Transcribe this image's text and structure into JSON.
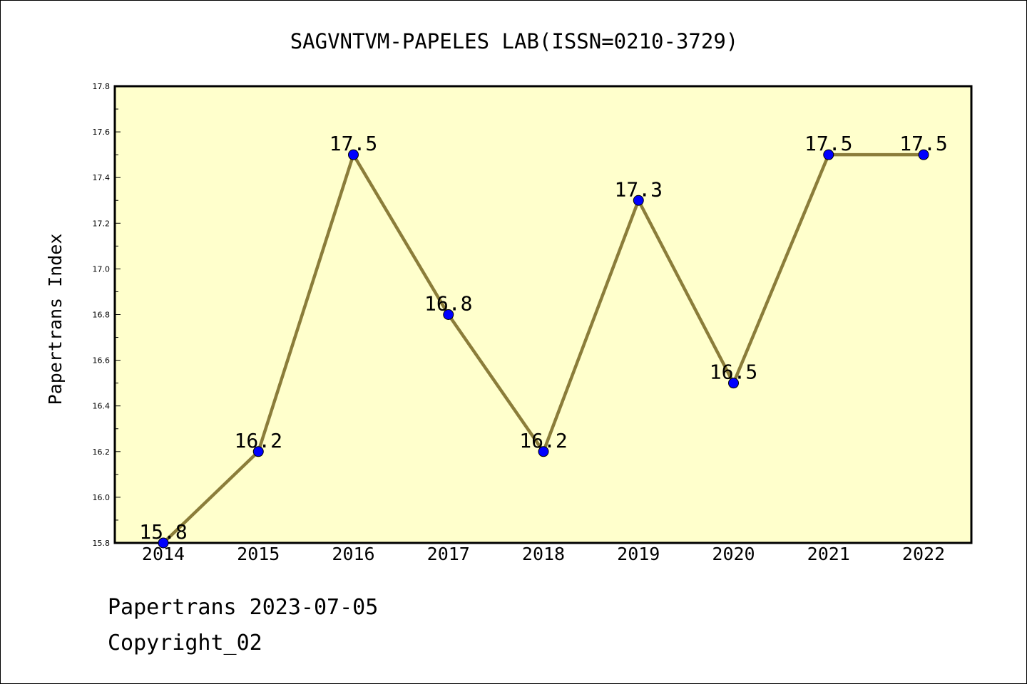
{
  "chart_data": {
    "type": "line",
    "title": "SAGVNTVM-PAPELES LAB(ISSN=0210-3729)",
    "xlabel": "",
    "ylabel": "Papertrans Index",
    "categories": [
      "2014",
      "2015",
      "2016",
      "2017",
      "2018",
      "2019",
      "2020",
      "2021",
      "2022"
    ],
    "series": [
      {
        "values": [
          15.8,
          16.2,
          17.5,
          16.8,
          16.2,
          17.3,
          16.5,
          17.5,
          17.5
        ],
        "labels": [
          "15.8",
          "16.2",
          "17.5",
          "16.8",
          "16.2",
          "17.3",
          "16.5",
          "17.5",
          "17.5"
        ]
      }
    ],
    "ylim": [
      15.8,
      17.8
    ],
    "yticks": [
      "15.8",
      "16.0",
      "16.2",
      "16.4",
      "16.6",
      "16.8",
      "17.0",
      "17.2",
      "17.4",
      "17.6",
      "17.8"
    ],
    "grid": false,
    "legend": "none",
    "colors": {
      "plot_background": "#ffffcc",
      "line": "#8b7d3a",
      "marker": "#0000ff"
    }
  },
  "footer": {
    "date_text": "Papertrans 2023-07-05",
    "copyright_text": "Copyright_02"
  }
}
